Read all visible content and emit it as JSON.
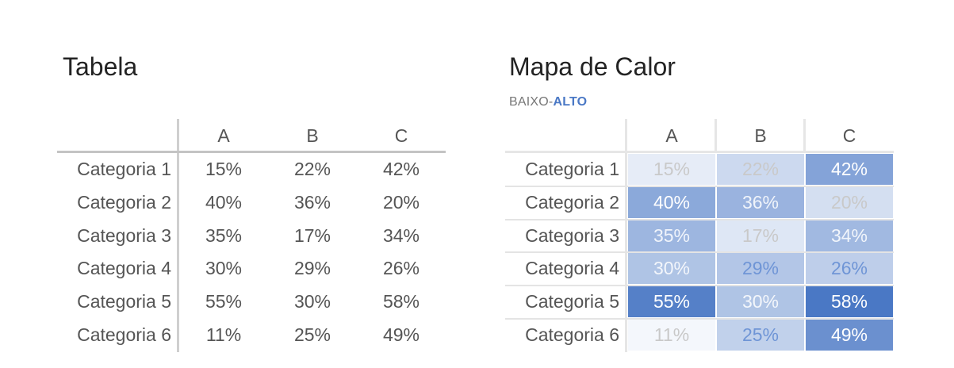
{
  "chart_data": [
    {
      "type": "table",
      "title": "Tabela",
      "columns": [
        "A",
        "B",
        "C"
      ],
      "rows": [
        "Categoria 1",
        "Categoria 2",
        "Categoria 3",
        "Categoria 4",
        "Categoria 5",
        "Categoria 6"
      ],
      "values": [
        [
          15,
          22,
          42
        ],
        [
          40,
          36,
          20
        ],
        [
          35,
          17,
          34
        ],
        [
          30,
          29,
          26
        ],
        [
          55,
          30,
          58
        ],
        [
          11,
          25,
          49
        ]
      ],
      "unit": "%"
    },
    {
      "type": "heatmap",
      "title": "Mapa de Calor",
      "legend": {
        "low": "BAIXO",
        "separator": "-",
        "high": "ALTO"
      },
      "columns": [
        "A",
        "B",
        "C"
      ],
      "rows": [
        "Categoria 1",
        "Categoria 2",
        "Categoria 3",
        "Categoria 4",
        "Categoria 5",
        "Categoria 6"
      ],
      "values": [
        [
          15,
          22,
          42
        ],
        [
          40,
          36,
          20
        ],
        [
          35,
          17,
          34
        ],
        [
          30,
          29,
          26
        ],
        [
          55,
          30,
          58
        ],
        [
          11,
          25,
          49
        ]
      ],
      "unit": "%",
      "color_low": "#ffffff",
      "color_high": "#4a78c5"
    }
  ]
}
